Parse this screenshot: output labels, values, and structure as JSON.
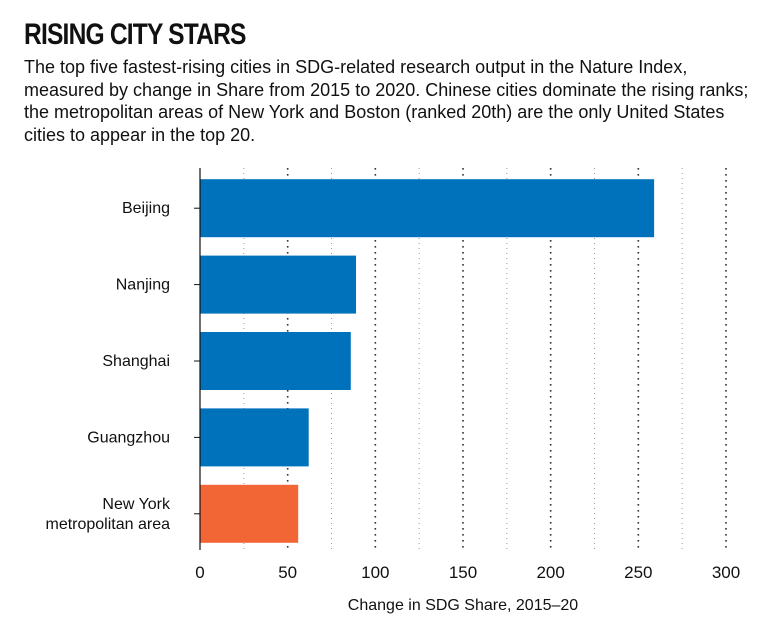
{
  "chart_data": {
    "type": "bar",
    "orientation": "horizontal",
    "title": "RISING CITY STARS",
    "subtitle": "The top five fastest-rising cities in SDG-related research output in the Nature Index, measured by change in Share from 2015 to 2020. Chinese cities dominate the rising ranks; the metropolitan areas of New York and Boston (ranked 20th) are the only United States cities to appear in the top 20.",
    "categories": [
      {
        "lines": [
          "Beijing"
        ]
      },
      {
        "lines": [
          "Nanjing"
        ]
      },
      {
        "lines": [
          "Shanghai"
        ]
      },
      {
        "lines": [
          "Guangzhou"
        ]
      },
      {
        "lines": [
          "New York",
          "metropolitan area"
        ]
      }
    ],
    "values": [
      259,
      89,
      86,
      62,
      56
    ],
    "colors": [
      "#0072bc",
      "#0072bc",
      "#0072bc",
      "#0072bc",
      "#f26535"
    ],
    "xlabel": "Change in SDG Share, 2015–20",
    "ylabel": "",
    "xlim": [
      0,
      300
    ],
    "major_ticks": [
      0,
      50,
      100,
      150,
      200,
      250,
      300
    ],
    "minor_ticks": [
      25,
      75,
      125,
      175,
      225,
      275
    ],
    "grid": "dotted vertical"
  }
}
